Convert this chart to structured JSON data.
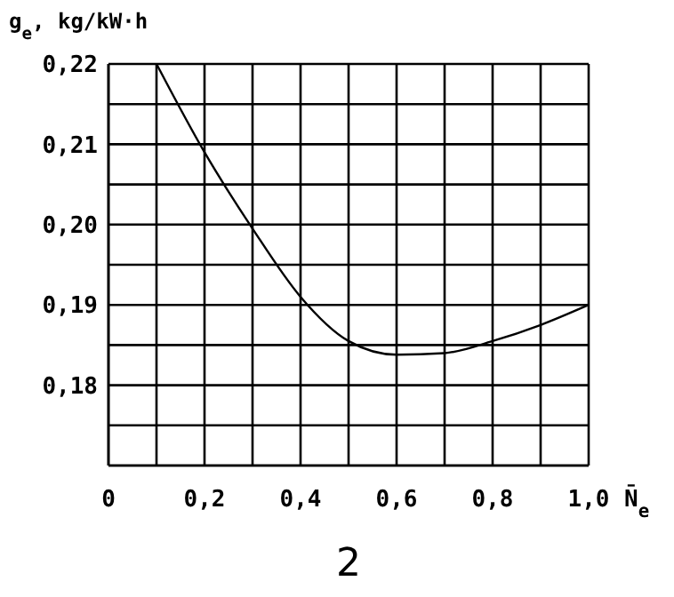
{
  "chart_data": {
    "type": "line",
    "ylabel": "g$_{e}$, kg/kW·h",
    "xlabel": "N̄$_{e}$",
    "annotations": [
      "2"
    ],
    "x": [
      0.1,
      0.2,
      0.3,
      0.4,
      0.5,
      0.6,
      0.7,
      0.8,
      0.9,
      1.0
    ],
    "series": [
      {
        "color": "#000000",
        "values": [
          0.22,
          0.209,
          0.1995,
          0.191,
          0.1855,
          0.1838,
          0.184,
          0.1855,
          0.1875,
          0.19
        ]
      }
    ],
    "xlim": [
      0,
      1
    ],
    "ylim": [
      0.17,
      0.22
    ],
    "xticks": [
      {
        "value": 0,
        "label": "0"
      },
      {
        "value": 0.1,
        "label": null
      },
      {
        "value": 0.2,
        "label": "0,2"
      },
      {
        "value": 0.3,
        "label": null
      },
      {
        "value": 0.4,
        "label": "0,4"
      },
      {
        "value": 0.5,
        "label": null
      },
      {
        "value": 0.6,
        "label": "0,6"
      },
      {
        "value": 0.7,
        "label": null
      },
      {
        "value": 0.8,
        "label": "0,8"
      },
      {
        "value": 0.9,
        "label": null
      },
      {
        "value": 1,
        "label": "1,0"
      }
    ],
    "yticks": [
      {
        "value": 0.17,
        "label": null
      },
      {
        "value": 0.175,
        "label": null
      },
      {
        "value": 0.18,
        "label": "0,18"
      },
      {
        "value": 0.185,
        "label": null
      },
      {
        "value": 0.19,
        "label": "0,19"
      },
      {
        "value": 0.195,
        "label": null
      },
      {
        "value": 0.2,
        "label": "0,20"
      },
      {
        "value": 0.205,
        "label": null
      },
      {
        "value": 0.21,
        "label": "0,21"
      },
      {
        "value": 0.215,
        "label": null
      },
      {
        "value": 0.22,
        "label": "0,22"
      }
    ],
    "grid": true,
    "marker": "none",
    "line_style": "solid"
  }
}
